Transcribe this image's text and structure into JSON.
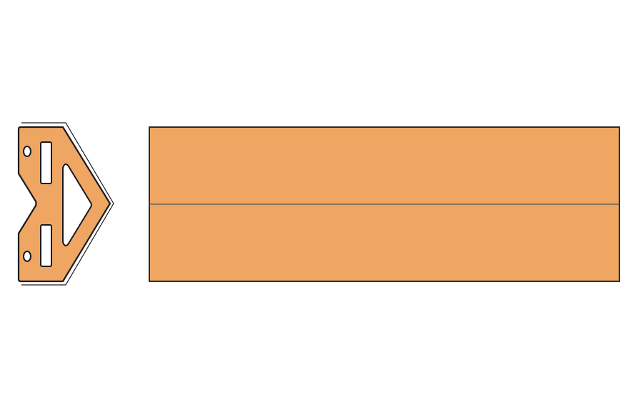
{
  "colors": {
    "fill": "#efa663",
    "stroke": "#1a1a1a",
    "divider": "#555555",
    "background": "#ffffff"
  },
  "parts": [
    {
      "name": "end-bracket",
      "holes": 2,
      "slots": 2,
      "triangular_cutouts": 1
    },
    {
      "name": "rectangular-panel",
      "sections": 2
    }
  ]
}
